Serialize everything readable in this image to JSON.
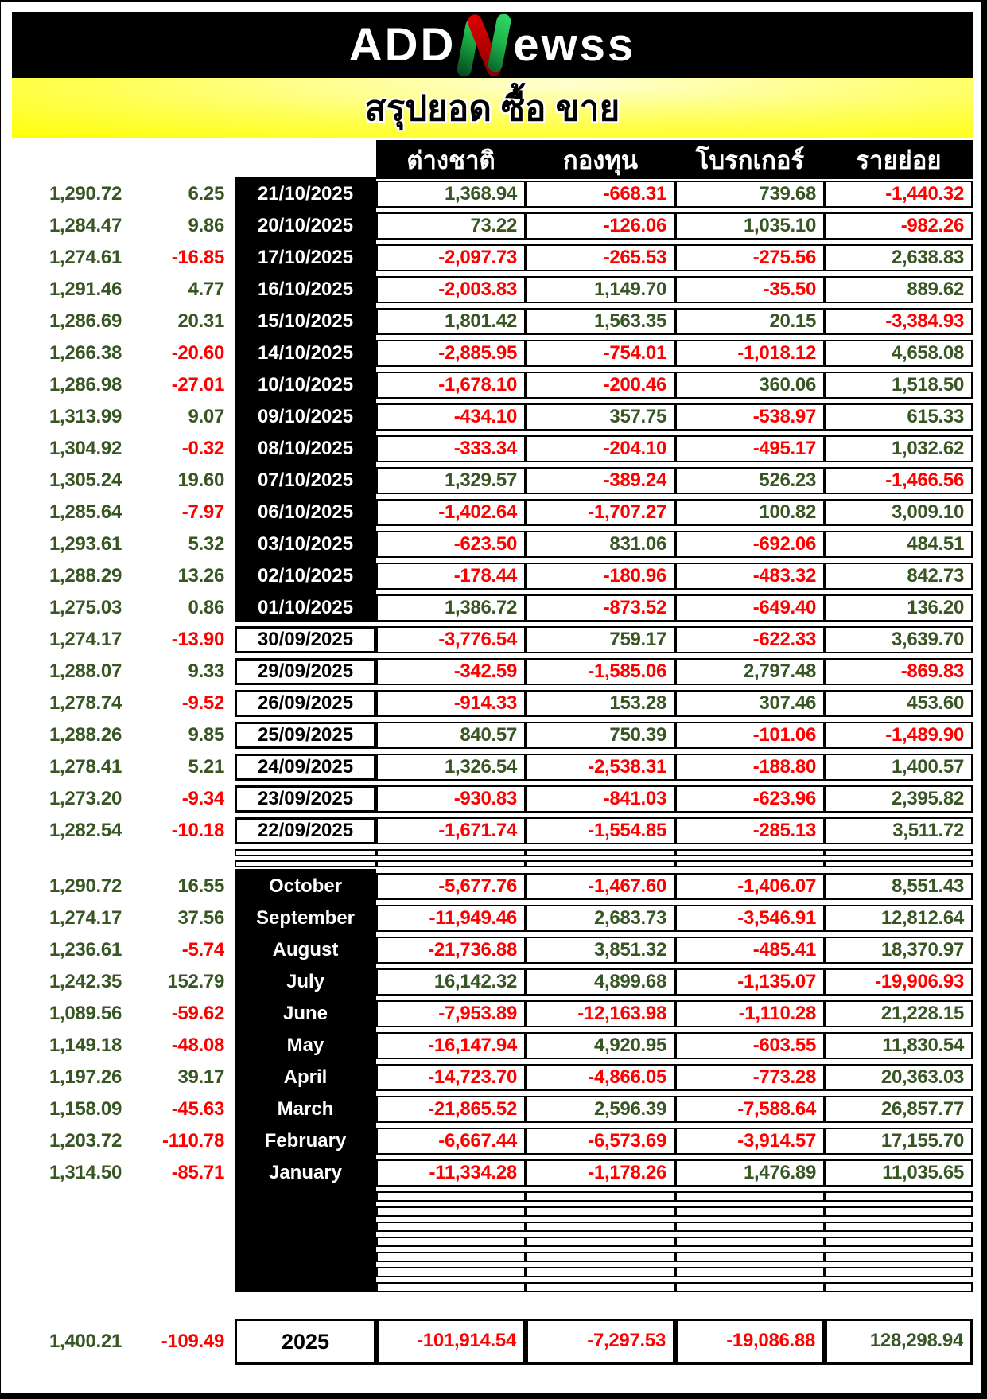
{
  "header": {
    "logo": {
      "part1": "ADD",
      "accent": "N",
      "part2": "ewss"
    },
    "title": "สรุปยอด ซื้อ ขาย"
  },
  "table": {
    "column_headers": [
      "ต่างชาติ",
      "กองทุน",
      "โบรกเกอร์",
      "รายย่อย"
    ],
    "daily_spacer_rows": 2,
    "monthly_empty_rows": 7,
    "daily": [
      {
        "index": "1,290.72",
        "change": "6.25",
        "label": "21/10/2025",
        "dark": true,
        "values": [
          "1,368.94",
          "-668.31",
          "739.68",
          "-1,440.32"
        ]
      },
      {
        "index": "1,284.47",
        "change": "9.86",
        "label": "20/10/2025",
        "dark": true,
        "values": [
          "73.22",
          "-126.06",
          "1,035.10",
          "-982.26"
        ]
      },
      {
        "index": "1,274.61",
        "change": "-16.85",
        "label": "17/10/2025",
        "dark": true,
        "values": [
          "-2,097.73",
          "-265.53",
          "-275.56",
          "2,638.83"
        ]
      },
      {
        "index": "1,291.46",
        "change": "4.77",
        "label": "16/10/2025",
        "dark": true,
        "values": [
          "-2,003.83",
          "1,149.70",
          "-35.50",
          "889.62"
        ]
      },
      {
        "index": "1,286.69",
        "change": "20.31",
        "label": "15/10/2025",
        "dark": true,
        "values": [
          "1,801.42",
          "1,563.35",
          "20.15",
          "-3,384.93"
        ]
      },
      {
        "index": "1,266.38",
        "change": "-20.60",
        "label": "14/10/2025",
        "dark": true,
        "values": [
          "-2,885.95",
          "-754.01",
          "-1,018.12",
          "4,658.08"
        ]
      },
      {
        "index": "1,286.98",
        "change": "-27.01",
        "label": "10/10/2025",
        "dark": true,
        "values": [
          "-1,678.10",
          "-200.46",
          "360.06",
          "1,518.50"
        ]
      },
      {
        "index": "1,313.99",
        "change": "9.07",
        "label": "09/10/2025",
        "dark": true,
        "values": [
          "-434.10",
          "357.75",
          "-538.97",
          "615.33"
        ]
      },
      {
        "index": "1,304.92",
        "change": "-0.32",
        "label": "08/10/2025",
        "dark": true,
        "values": [
          "-333.34",
          "-204.10",
          "-495.17",
          "1,032.62"
        ]
      },
      {
        "index": "1,305.24",
        "change": "19.60",
        "label": "07/10/2025",
        "dark": true,
        "values": [
          "1,329.57",
          "-389.24",
          "526.23",
          "-1,466.56"
        ]
      },
      {
        "index": "1,285.64",
        "change": "-7.97",
        "label": "06/10/2025",
        "dark": true,
        "values": [
          "-1,402.64",
          "-1,707.27",
          "100.82",
          "3,009.10"
        ]
      },
      {
        "index": "1,293.61",
        "change": "5.32",
        "label": "03/10/2025",
        "dark": true,
        "values": [
          "-623.50",
          "831.06",
          "-692.06",
          "484.51"
        ]
      },
      {
        "index": "1,288.29",
        "change": "13.26",
        "label": "02/10/2025",
        "dark": true,
        "values": [
          "-178.44",
          "-180.96",
          "-483.32",
          "842.73"
        ]
      },
      {
        "index": "1,275.03",
        "change": "0.86",
        "label": "01/10/2025",
        "dark": true,
        "values": [
          "1,386.72",
          "-873.52",
          "-649.40",
          "136.20"
        ]
      },
      {
        "index": "1,274.17",
        "change": "-13.90",
        "label": "30/09/2025",
        "dark": false,
        "values": [
          "-3,776.54",
          "759.17",
          "-622.33",
          "3,639.70"
        ]
      },
      {
        "index": "1,288.07",
        "change": "9.33",
        "label": "29/09/2025",
        "dark": false,
        "values": [
          "-342.59",
          "-1,585.06",
          "2,797.48",
          "-869.83"
        ]
      },
      {
        "index": "1,278.74",
        "change": "-9.52",
        "label": "26/09/2025",
        "dark": false,
        "values": [
          "-914.33",
          "153.28",
          "307.46",
          "453.60"
        ]
      },
      {
        "index": "1,288.26",
        "change": "9.85",
        "label": "25/09/2025",
        "dark": false,
        "values": [
          "840.57",
          "750.39",
          "-101.06",
          "-1,489.90"
        ]
      },
      {
        "index": "1,278.41",
        "change": "5.21",
        "label": "24/09/2025",
        "dark": false,
        "values": [
          "1,326.54",
          "-2,538.31",
          "-188.80",
          "1,400.57"
        ]
      },
      {
        "index": "1,273.20",
        "change": "-9.34",
        "label": "23/09/2025",
        "dark": false,
        "values": [
          "-930.83",
          "-841.03",
          "-623.96",
          "2,395.82"
        ]
      },
      {
        "index": "1,282.54",
        "change": "-10.18",
        "label": "22/09/2025",
        "dark": false,
        "values": [
          "-1,671.74",
          "-1,554.85",
          "-285.13",
          "3,511.72"
        ]
      }
    ],
    "monthly": [
      {
        "index": "1,290.72",
        "change": "16.55",
        "label": "October",
        "dark": true,
        "values": [
          "-5,677.76",
          "-1,467.60",
          "-1,406.07",
          "8,551.43"
        ]
      },
      {
        "index": "1,274.17",
        "change": "37.56",
        "label": "September",
        "dark": true,
        "values": [
          "-11,949.46",
          "2,683.73",
          "-3,546.91",
          "12,812.64"
        ]
      },
      {
        "index": "1,236.61",
        "change": "-5.74",
        "label": "August",
        "dark": true,
        "values": [
          "-21,736.88",
          "3,851.32",
          "-485.41",
          "18,370.97"
        ]
      },
      {
        "index": "1,242.35",
        "change": "152.79",
        "label": "July",
        "dark": true,
        "values": [
          "16,142.32",
          "4,899.68",
          "-1,135.07",
          "-19,906.93"
        ]
      },
      {
        "index": "1,089.56",
        "change": "-59.62",
        "label": "June",
        "dark": true,
        "values": [
          "-7,953.89",
          "-12,163.98",
          "-1,110.28",
          "21,228.15"
        ]
      },
      {
        "index": "1,149.18",
        "change": "-48.08",
        "label": "May",
        "dark": true,
        "values": [
          "-16,147.94",
          "4,920.95",
          "-603.55",
          "11,830.54"
        ]
      },
      {
        "index": "1,197.26",
        "change": "39.17",
        "label": "April",
        "dark": true,
        "values": [
          "-14,723.70",
          "-4,866.05",
          "-773.28",
          "20,363.03"
        ]
      },
      {
        "index": "1,158.09",
        "change": "-45.63",
        "label": "March",
        "dark": true,
        "values": [
          "-21,865.52",
          "2,596.39",
          "-7,588.64",
          "26,857.77"
        ]
      },
      {
        "index": "1,203.72",
        "change": "-110.78",
        "label": "February",
        "dark": true,
        "values": [
          "-6,667.44",
          "-6,573.69",
          "-3,914.57",
          "17,155.70"
        ]
      },
      {
        "index": "1,314.50",
        "change": "-85.71",
        "label": "January",
        "dark": true,
        "values": [
          "-11,334.28",
          "-1,178.26",
          "1,476.89",
          "11,035.65"
        ]
      }
    ],
    "yearly": {
      "index": "1,400.21",
      "change": "-109.49",
      "label": "2025",
      "values": [
        "-101,914.54",
        "-7,297.53",
        "-19,086.88",
        "128,298.94"
      ]
    }
  },
  "colors": {
    "positive": "#375623",
    "negative": "#FF0000",
    "highlight_bar": "#FFFF00",
    "header_bg": "#000000",
    "logo_green": "#1CA94C",
    "logo_red": "#C00000"
  }
}
